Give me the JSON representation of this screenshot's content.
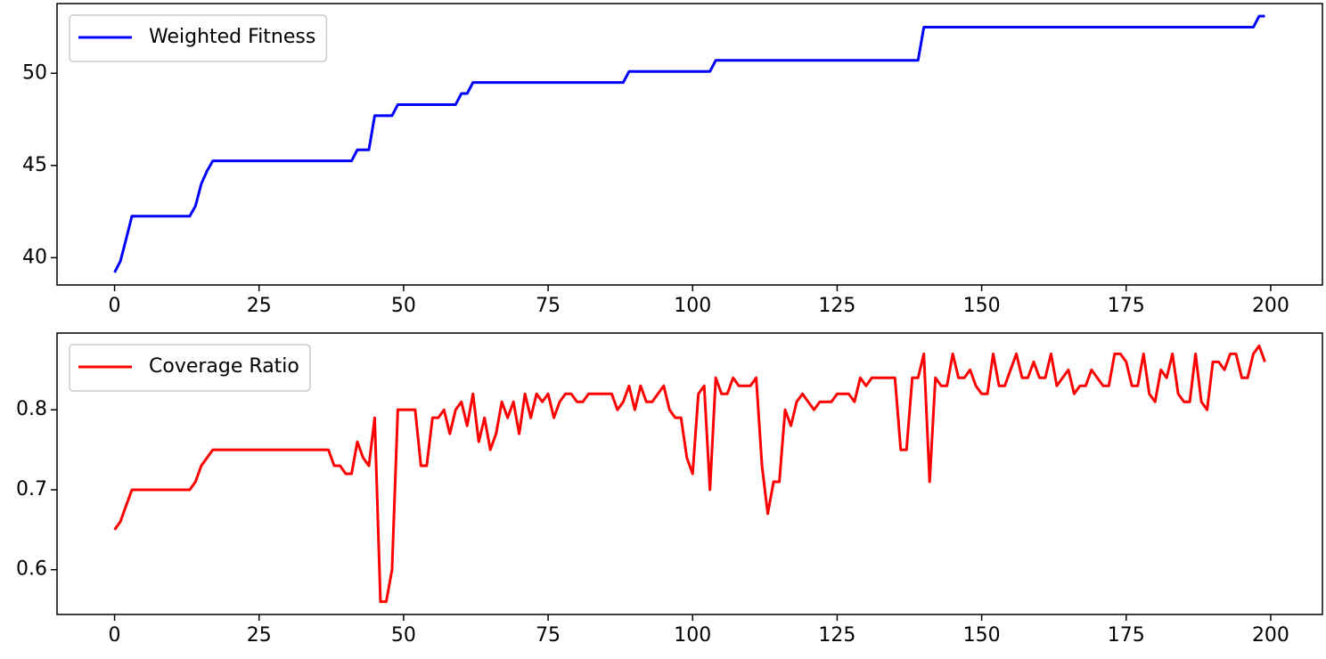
{
  "chart_data": [
    {
      "type": "line",
      "legend": "upper left",
      "x": [
        0,
        1,
        2,
        3,
        4,
        5,
        6,
        7,
        8,
        9,
        10,
        11,
        12,
        13,
        14,
        15,
        16,
        17,
        18,
        19,
        20,
        21,
        22,
        23,
        24,
        25,
        26,
        27,
        28,
        29,
        30,
        31,
        32,
        33,
        34,
        35,
        36,
        37,
        38,
        39,
        40,
        41,
        42,
        43,
        44,
        45,
        46,
        47,
        48,
        49,
        50,
        51,
        52,
        53,
        54,
        55,
        56,
        57,
        58,
        59,
        60,
        61,
        62,
        63,
        64,
        65,
        66,
        67,
        68,
        69,
        70,
        71,
        72,
        73,
        74,
        75,
        76,
        77,
        78,
        79,
        80,
        81,
        82,
        83,
        84,
        85,
        86,
        87,
        88,
        89,
        90,
        91,
        92,
        93,
        94,
        95,
        96,
        97,
        98,
        99,
        100,
        101,
        102,
        103,
        104,
        105,
        106,
        107,
        108,
        109,
        110,
        111,
        112,
        113,
        114,
        115,
        116,
        117,
        118,
        119,
        120,
        121,
        122,
        123,
        124,
        125,
        126,
        127,
        128,
        129,
        130,
        131,
        132,
        133,
        134,
        135,
        136,
        137,
        138,
        139,
        140,
        141,
        142,
        143,
        144,
        145,
        146,
        147,
        148,
        149,
        150,
        151,
        152,
        153,
        154,
        155,
        156,
        157,
        158,
        159,
        160,
        161,
        162,
        163,
        164,
        165,
        166,
        167,
        168,
        169,
        170,
        171,
        172,
        173,
        174,
        175,
        176,
        177,
        178,
        179,
        180,
        181,
        182,
        183,
        184,
        185,
        186,
        187,
        188,
        189,
        190,
        191,
        192,
        193,
        194,
        195,
        196,
        197,
        198,
        199
      ],
      "series": [
        {
          "name": "Weighted Fitness",
          "color": "#0000ff",
          "values": [
            39.2,
            39.8,
            41.0,
            42.25,
            42.25,
            42.25,
            42.25,
            42.25,
            42.25,
            42.25,
            42.25,
            42.25,
            42.25,
            42.25,
            42.8,
            44.0,
            44.7,
            45.25,
            45.25,
            45.25,
            45.25,
            45.25,
            45.25,
            45.25,
            45.25,
            45.25,
            45.25,
            45.25,
            45.25,
            45.25,
            45.25,
            45.25,
            45.25,
            45.25,
            45.25,
            45.25,
            45.25,
            45.25,
            45.25,
            45.25,
            45.25,
            45.25,
            45.85,
            45.85,
            45.85,
            47.7,
            47.7,
            47.7,
            47.7,
            48.3,
            48.3,
            48.3,
            48.3,
            48.3,
            48.3,
            48.3,
            48.3,
            48.3,
            48.3,
            48.3,
            48.9,
            48.9,
            49.5,
            49.5,
            49.5,
            49.5,
            49.5,
            49.5,
            49.5,
            49.5,
            49.5,
            49.5,
            49.5,
            49.5,
            49.5,
            49.5,
            49.5,
            49.5,
            49.5,
            49.5,
            49.5,
            49.5,
            49.5,
            49.5,
            49.5,
            49.5,
            49.5,
            49.5,
            49.5,
            50.1,
            50.1,
            50.1,
            50.1,
            50.1,
            50.1,
            50.1,
            50.1,
            50.1,
            50.1,
            50.1,
            50.1,
            50.1,
            50.1,
            50.1,
            50.7,
            50.7,
            50.7,
            50.7,
            50.7,
            50.7,
            50.7,
            50.7,
            50.7,
            50.7,
            50.7,
            50.7,
            50.7,
            50.7,
            50.7,
            50.7,
            50.7,
            50.7,
            50.7,
            50.7,
            50.7,
            50.7,
            50.7,
            50.7,
            50.7,
            50.7,
            50.7,
            50.7,
            50.7,
            50.7,
            50.7,
            50.7,
            50.7,
            50.7,
            50.7,
            50.7,
            52.5,
            52.5,
            52.5,
            52.5,
            52.5,
            52.5,
            52.5,
            52.5,
            52.5,
            52.5,
            52.5,
            52.5,
            52.5,
            52.5,
            52.5,
            52.5,
            52.5,
            52.5,
            52.5,
            52.5,
            52.5,
            52.5,
            52.5,
            52.5,
            52.5,
            52.5,
            52.5,
            52.5,
            52.5,
            52.5,
            52.5,
            52.5,
            52.5,
            52.5,
            52.5,
            52.5,
            52.5,
            52.5,
            52.5,
            52.5,
            52.5,
            52.5,
            52.5,
            52.5,
            52.5,
            52.5,
            52.5,
            52.5,
            52.5,
            52.5,
            52.5,
            52.5,
            52.5,
            52.5,
            52.5,
            52.5,
            52.5,
            52.5,
            53.1,
            53.1
          ]
        }
      ],
      "xlim": [
        -9.95,
        208.95
      ],
      "xticks": [
        0,
        25,
        50,
        75,
        100,
        125,
        150,
        175,
        200
      ],
      "ylim": [
        38.52,
        53.78
      ],
      "yticks": [
        40,
        45,
        50
      ]
    },
    {
      "type": "line",
      "legend": "upper left",
      "x": [
        0,
        1,
        2,
        3,
        4,
        5,
        6,
        7,
        8,
        9,
        10,
        11,
        12,
        13,
        14,
        15,
        16,
        17,
        18,
        19,
        20,
        21,
        22,
        23,
        24,
        25,
        26,
        27,
        28,
        29,
        30,
        31,
        32,
        33,
        34,
        35,
        36,
        37,
        38,
        39,
        40,
        41,
        42,
        43,
        44,
        45,
        46,
        47,
        48,
        49,
        50,
        51,
        52,
        53,
        54,
        55,
        56,
        57,
        58,
        59,
        60,
        61,
        62,
        63,
        64,
        65,
        66,
        67,
        68,
        69,
        70,
        71,
        72,
        73,
        74,
        75,
        76,
        77,
        78,
        79,
        80,
        81,
        82,
        83,
        84,
        85,
        86,
        87,
        88,
        89,
        90,
        91,
        92,
        93,
        94,
        95,
        96,
        97,
        98,
        99,
        100,
        101,
        102,
        103,
        104,
        105,
        106,
        107,
        108,
        109,
        110,
        111,
        112,
        113,
        114,
        115,
        116,
        117,
        118,
        119,
        120,
        121,
        122,
        123,
        124,
        125,
        126,
        127,
        128,
        129,
        130,
        131,
        132,
        133,
        134,
        135,
        136,
        137,
        138,
        139,
        140,
        141,
        142,
        143,
        144,
        145,
        146,
        147,
        148,
        149,
        150,
        151,
        152,
        153,
        154,
        155,
        156,
        157,
        158,
        159,
        160,
        161,
        162,
        163,
        164,
        165,
        166,
        167,
        168,
        169,
        170,
        171,
        172,
        173,
        174,
        175,
        176,
        177,
        178,
        179,
        180,
        181,
        182,
        183,
        184,
        185,
        186,
        187,
        188,
        189,
        190,
        191,
        192,
        193,
        194,
        195,
        196,
        197,
        198,
        199
      ],
      "series": [
        {
          "name": "Coverage Ratio",
          "color": "#ff0000",
          "values": [
            0.65,
            0.66,
            0.68,
            0.7,
            0.7,
            0.7,
            0.7,
            0.7,
            0.7,
            0.7,
            0.7,
            0.7,
            0.7,
            0.7,
            0.71,
            0.73,
            0.74,
            0.75,
            0.75,
            0.75,
            0.75,
            0.75,
            0.75,
            0.75,
            0.75,
            0.75,
            0.75,
            0.75,
            0.75,
            0.75,
            0.75,
            0.75,
            0.75,
            0.75,
            0.75,
            0.75,
            0.75,
            0.75,
            0.73,
            0.73,
            0.72,
            0.72,
            0.76,
            0.74,
            0.73,
            0.79,
            0.56,
            0.56,
            0.6,
            0.8,
            0.8,
            0.8,
            0.8,
            0.73,
            0.73,
            0.79,
            0.79,
            0.8,
            0.77,
            0.8,
            0.81,
            0.78,
            0.82,
            0.76,
            0.79,
            0.75,
            0.77,
            0.81,
            0.79,
            0.81,
            0.77,
            0.82,
            0.79,
            0.82,
            0.81,
            0.82,
            0.79,
            0.81,
            0.82,
            0.82,
            0.81,
            0.81,
            0.82,
            0.82,
            0.82,
            0.82,
            0.82,
            0.8,
            0.81,
            0.83,
            0.8,
            0.83,
            0.81,
            0.81,
            0.82,
            0.83,
            0.8,
            0.79,
            0.79,
            0.74,
            0.72,
            0.82,
            0.83,
            0.7,
            0.84,
            0.82,
            0.82,
            0.84,
            0.83,
            0.83,
            0.83,
            0.84,
            0.73,
            0.67,
            0.71,
            0.71,
            0.8,
            0.78,
            0.81,
            0.82,
            0.81,
            0.8,
            0.81,
            0.81,
            0.81,
            0.82,
            0.82,
            0.82,
            0.81,
            0.84,
            0.83,
            0.84,
            0.84,
            0.84,
            0.84,
            0.84,
            0.75,
            0.75,
            0.84,
            0.84,
            0.87,
            0.71,
            0.84,
            0.83,
            0.83,
            0.87,
            0.84,
            0.84,
            0.85,
            0.83,
            0.82,
            0.82,
            0.87,
            0.83,
            0.83,
            0.85,
            0.87,
            0.84,
            0.84,
            0.86,
            0.84,
            0.84,
            0.87,
            0.83,
            0.84,
            0.85,
            0.82,
            0.83,
            0.83,
            0.85,
            0.84,
            0.83,
            0.83,
            0.87,
            0.87,
            0.86,
            0.83,
            0.83,
            0.87,
            0.82,
            0.81,
            0.85,
            0.84,
            0.87,
            0.82,
            0.81,
            0.81,
            0.87,
            0.81,
            0.8,
            0.86,
            0.86,
            0.85,
            0.87,
            0.87,
            0.84,
            0.84,
            0.87,
            0.88,
            0.86
          ]
        }
      ],
      "xlim": [
        -9.95,
        208.95
      ],
      "xticks": [
        0,
        25,
        50,
        75,
        100,
        125,
        150,
        175,
        200
      ],
      "ylim": [
        0.544,
        0.896
      ],
      "yticks": [
        0.6,
        0.7,
        0.8
      ]
    }
  ]
}
